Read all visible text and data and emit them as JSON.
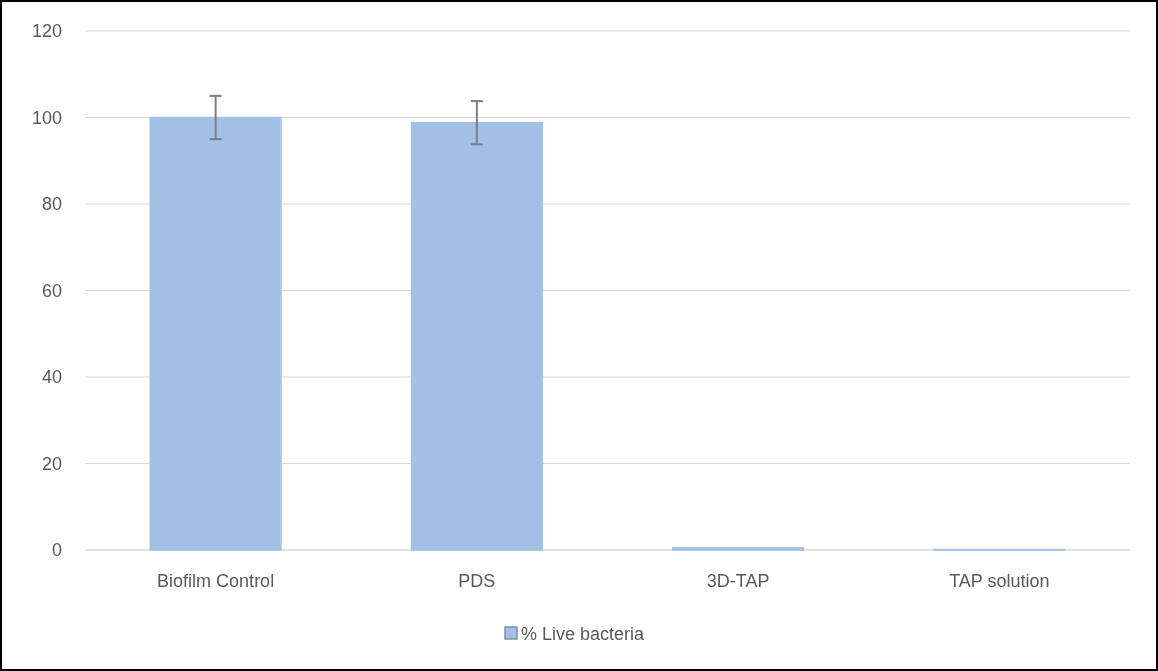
{
  "chart_data": {
    "type": "bar",
    "categories": [
      "Biofilm Control",
      "PDS",
      "3D-TAP",
      "TAP solution"
    ],
    "series": [
      {
        "name": "% Live bacteria",
        "color": "#a3c0e6",
        "values": [
          100,
          98.8,
          0.5,
          0.1
        ],
        "errors": [
          5,
          5,
          null,
          null
        ]
      }
    ],
    "ylim": [
      0,
      120
    ],
    "yticks": [
      0,
      20,
      40,
      60,
      80,
      100,
      120
    ],
    "grid": "y",
    "legend": "bottom"
  }
}
